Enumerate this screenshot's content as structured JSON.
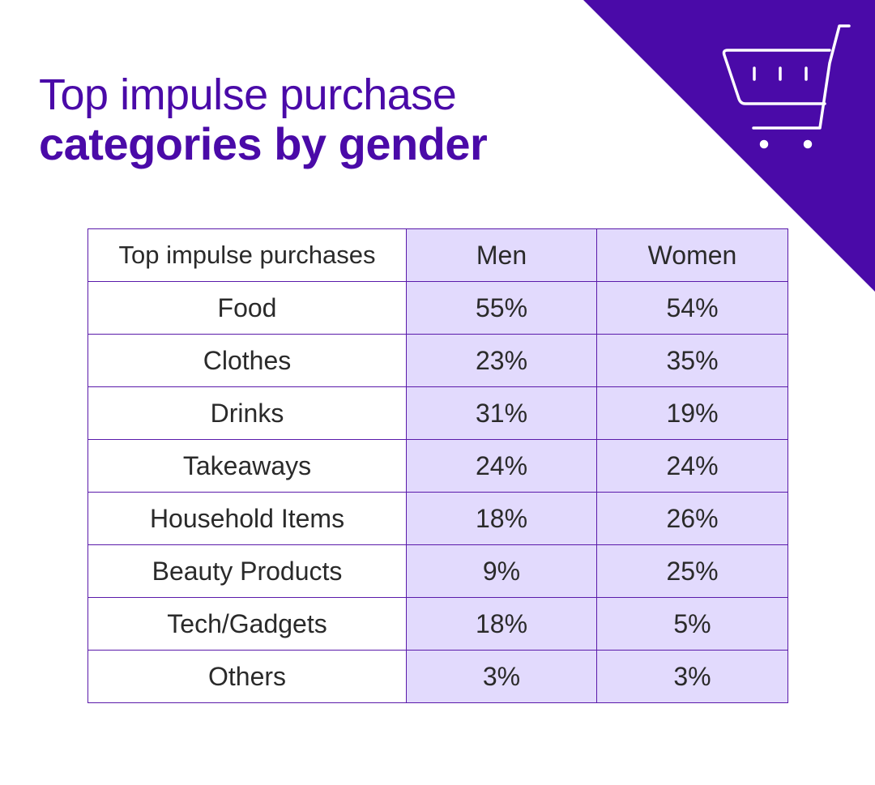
{
  "title": {
    "line1": "Top impulse purchase",
    "line2": "categories by gender"
  },
  "icon": "shopping-cart-icon",
  "colors": {
    "brand": "#4a0aa8",
    "cell_shade": "#e2dafd",
    "border": "#5a1aaa"
  },
  "chart_data": {
    "type": "table",
    "columns": [
      "Top impulse purchases",
      "Men",
      "Women"
    ],
    "rows": [
      [
        "Food",
        "55%",
        "54%"
      ],
      [
        "Clothes",
        "23%",
        "35%"
      ],
      [
        "Drinks",
        "31%",
        "19%"
      ],
      [
        "Takeaways",
        "24%",
        "24%"
      ],
      [
        "Household Items",
        "18%",
        "26%"
      ],
      [
        "Beauty Products",
        "9%",
        "25%"
      ],
      [
        "Tech/Gadgets",
        "18%",
        "5%"
      ],
      [
        "Others",
        "3%",
        "3%"
      ]
    ]
  }
}
